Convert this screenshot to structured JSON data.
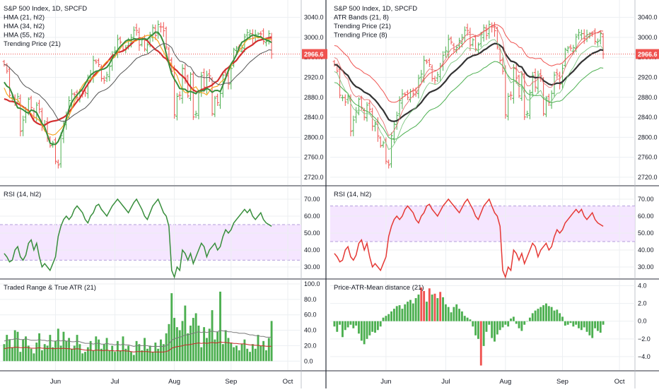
{
  "panels": {
    "left_price": {
      "legend": [
        "S&P 500 Index, 1D, SPCFD",
        "HMA (21, hl2)",
        "HMA (34, hl2)",
        "HMA (55, hl2)",
        "Trending Price (21)"
      ],
      "price_badge": "2966.6",
      "yticks": [
        "3040.0",
        "3000.0",
        "2960.0",
        "2920.0",
        "2880.0",
        "2840.0",
        "2800.0",
        "2760.0",
        "2720.0"
      ]
    },
    "right_price": {
      "legend": [
        "S&P 500 Index, 1D, SPCFD",
        "ATR Bands (21, 8)",
        "Trending Price (21)",
        "Trending Price (8)"
      ],
      "price_badge": "2966.6",
      "yticks": [
        "3040.0",
        "3000.0",
        "2960.0",
        "2920.0",
        "2880.0",
        "2840.0",
        "2800.0",
        "2760.0",
        "2720.0"
      ]
    },
    "left_rsi": {
      "legend": "RSI (14, hl2)",
      "yticks": [
        "70.00",
        "60.00",
        "50.00",
        "40.00",
        "30.00"
      ]
    },
    "right_rsi": {
      "legend": "RSI (14, hl2)",
      "yticks": [
        "70.00",
        "60.00",
        "50.00",
        "40.00",
        "30.00"
      ]
    },
    "left_atr": {
      "legend": "Traded Range & True ATR (21)",
      "yticks": [
        "100.0",
        "80.0",
        "60.0",
        "40.0",
        "20.0",
        "0.0"
      ]
    },
    "right_dist": {
      "legend": "Price-ATR-Mean distance (21)",
      "yticks": [
        "4.0",
        "2.0",
        "0.0",
        "−2.0",
        "−4.0"
      ]
    }
  },
  "xaxis": {
    "left": [
      "Jun",
      "Jul",
      "Aug",
      "Sep",
      "Oct"
    ],
    "right": [
      "Jun",
      "Jul",
      "Aug",
      "Sep",
      "Oct"
    ]
  },
  "colors": {
    "bull": "#4caf50",
    "bear": "#ef5350",
    "hma21": "#388e3c",
    "hma34": "#f5a623",
    "hma55": "#d32f2f",
    "trend": "#555555",
    "rsi_green": "#388e3c",
    "rsi_red": "#e53935",
    "band_fill": "#f3e0ff",
    "atr_line": "#7a7a7a",
    "atr_red": "#c62828",
    "badge": "#ef5350"
  },
  "chart_data": [
    {
      "type": "line",
      "title": "S&P 500 Index, 1D, SPCFD",
      "ylim": [
        2710,
        3055
      ],
      "x_range": [
        "2019-05-03",
        "2019-10-05"
      ],
      "close": [
        [
          2945.6,
          2932.5,
          2884.1,
          2879.4,
          2870.7,
          2881.4,
          2811.9,
          2834.4,
          2850.9,
          2876.3,
          2859.5,
          2840.2,
          2864.4,
          2856.3,
          2822.2,
          2826.1,
          2802.4,
          2783.0,
          2788.9,
          2752.1,
          2744.5,
          2803.3,
          2826.2,
          2843.5,
          2873.3,
          2886.7,
          2885.7,
          2879.8,
          2891.6,
          2886.9,
          2889.7,
          2917.8,
          2926.5,
          2954.2,
          2950.5,
          2945.4,
          2917.4,
          2913.8,
          2924.9,
          2941.8,
          2964.3,
          2973.0,
          2995.8,
          2990.4,
          2975.9,
          2979.6,
          2993.1,
          2999.9,
          3014.3,
          3013.8,
          2984.4,
          2995.1,
          2976.6,
          2985.0,
          3005.5,
          3019.6,
          3003.7,
          3025.9,
          3020.9,
          3013.2,
          2980.4,
          2953.6,
          2932.1,
          2844.7,
          2881.8,
          2883.9,
          2938.1,
          2918.7,
          2882.7,
          2926.3,
          2840.6,
          2847.6,
          2888.7,
          2923.7,
          2900.5,
          2924.4,
          2922.9,
          2847.1,
          2878.4,
          2869.2,
          2887.9,
          2924.6,
          2926.5,
          2906.3,
          2937.8,
          2976.0,
          2978.7,
          2978.4,
          2979.4,
          3000.9,
          3009.6,
          3007.4,
          2997.9,
          3005.7,
          3006.7,
          3006.8,
          2992.1,
          2991.8,
          3007.4,
          2966.6
        ]
      ]
    },
    {
      "type": "line",
      "title": "RSI (14, hl2)",
      "ylim": [
        25,
        75
      ],
      "bands": [
        [
          34,
          55
        ],
        [
          45,
          66
        ]
      ],
      "series": [
        {
          "name": "RSI (14, hl2)",
          "values": [
            38,
            36,
            33,
            34,
            40,
            42,
            36,
            34,
            37,
            44,
            46,
            40,
            44,
            36,
            30,
            32,
            30,
            28,
            32,
            36,
            48,
            54,
            58,
            60,
            58,
            60,
            64,
            66,
            64,
            62,
            58,
            56,
            60,
            62,
            66,
            67,
            64,
            62,
            60,
            63,
            66,
            68,
            70,
            68,
            66,
            64,
            62,
            65,
            68,
            70,
            67,
            64,
            60,
            58,
            62,
            66,
            68,
            70,
            66,
            62,
            60,
            54,
            28,
            24,
            30,
            28,
            40,
            38,
            34,
            38,
            32,
            36,
            40,
            44,
            42,
            36,
            40,
            42,
            44,
            40,
            42,
            48,
            52,
            50,
            52,
            56,
            58,
            60,
            62,
            64,
            62,
            64,
            60,
            58,
            60,
            62,
            58,
            56,
            55,
            54
          ]
        }
      ]
    },
    {
      "type": "bar",
      "title": "Traded Range & True ATR (21)",
      "ylim": [
        -8,
        100
      ],
      "series": [
        {
          "name": "Traded Range",
          "values": [
            22,
            34,
            28,
            18,
            40,
            38,
            12,
            28,
            32,
            20,
            16,
            10,
            24,
            36,
            14,
            22,
            20,
            34,
            18,
            26,
            42,
            20,
            38,
            26,
            30,
            16,
            20,
            34,
            22,
            10,
            12,
            18,
            26,
            14,
            32,
            28,
            16,
            22,
            30,
            14,
            20,
            12,
            26,
            14,
            32,
            16,
            20,
            12,
            8,
            26,
            22,
            14,
            30,
            16,
            20,
            12,
            24,
            16,
            28,
            22,
            36,
            48,
            88,
            56,
            44,
            40,
            52,
            72,
            36,
            46,
            56,
            62,
            46,
            18,
            44,
            30,
            42,
            66,
            28,
            38,
            90,
            22,
            40,
            30,
            24,
            18,
            20,
            14,
            22,
            28,
            16,
            12,
            22,
            16,
            34,
            20,
            26,
            14,
            30,
            52
          ]
        },
        {
          "name": "True ATR",
          "values": [
            26,
            27,
            28,
            28,
            29,
            29,
            28,
            28,
            29,
            28,
            27,
            27,
            27,
            28,
            27,
            27,
            26,
            27,
            26,
            26,
            27,
            26,
            27,
            26,
            26,
            25,
            25,
            26,
            25,
            24,
            23,
            23,
            23,
            22,
            23,
            23,
            22,
            22,
            23,
            22,
            22,
            21,
            22,
            21,
            22,
            21,
            21,
            20,
            19,
            20,
            20,
            20,
            20,
            20,
            19,
            19,
            19,
            19,
            19,
            19,
            20,
            22,
            27,
            29,
            30,
            31,
            32,
            34,
            34,
            35,
            36,
            37,
            38,
            37,
            38,
            37,
            38,
            39,
            38,
            38,
            40,
            39,
            39,
            38,
            38,
            37,
            37,
            36,
            36,
            36,
            35,
            34,
            34,
            33,
            33,
            32,
            32,
            31,
            31,
            31
          ]
        }
      ]
    },
    {
      "type": "bar",
      "title": "Price-ATR-Mean distance (21)",
      "ylim": [
        -5.2,
        4.2
      ],
      "series": [
        {
          "name": "Price-ATR-Mean distance (21)",
          "values": [
            -0.6,
            -1.2,
            -0.4,
            -1.8,
            -1.0,
            -0.7,
            -0.4,
            -0.8,
            -0.5,
            -1.4,
            -2.2,
            -2.6,
            -2.0,
            -1.6,
            -1.2,
            -1.3,
            -1.0,
            -0.6,
            0.4,
            0.6,
            0.8,
            1.1,
            1.4,
            1.7,
            1.8,
            1.4,
            1.9,
            2.2,
            2.4,
            2.0,
            2.6,
            3.0,
            3.8,
            3.4,
            2.2,
            3.7,
            3.0,
            3.1,
            2.6,
            3.3,
            2.7,
            1.9,
            1.6,
            1.0,
            1.6,
            1.9,
            1.4,
            1.1,
            0.6,
            0.4,
            0.2,
            -0.6,
            -1.6,
            -2.0,
            -5.0,
            -2.8,
            -1.2,
            -0.4,
            -1.9,
            -2.3,
            -1.5,
            -1.0,
            -0.7,
            -0.4,
            -0.6,
            0.3,
            0.5,
            -0.3,
            -0.8,
            -1.1,
            -0.4,
            0.0,
            0.4,
            0.9,
            1.2,
            1.4,
            1.6,
            1.8,
            2.0,
            1.7,
            1.6,
            1.2,
            1.3,
            0.9,
            0.5,
            -0.5,
            -0.4,
            -0.2,
            -0.6,
            -0.4,
            -0.8,
            -1.0,
            -0.7,
            -1.2,
            -1.6,
            -1.9,
            -0.8,
            -1.1,
            -1.3,
            -0.4
          ]
        }
      ]
    }
  ]
}
